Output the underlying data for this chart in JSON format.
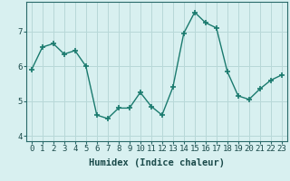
{
  "x": [
    0,
    1,
    2,
    3,
    4,
    5,
    6,
    7,
    8,
    9,
    10,
    11,
    12,
    13,
    14,
    15,
    16,
    17,
    18,
    19,
    20,
    21,
    22,
    23
  ],
  "y": [
    5.9,
    6.55,
    6.65,
    6.35,
    6.45,
    6.0,
    4.6,
    4.5,
    4.8,
    4.8,
    5.25,
    4.85,
    4.6,
    5.4,
    6.95,
    7.55,
    7.25,
    7.1,
    5.85,
    5.15,
    5.05,
    5.35,
    5.6,
    5.75
  ],
  "line_color": "#1a7a6e",
  "marker": "+",
  "background_color": "#d8f0f0",
  "grid_color": "#b8d8d8",
  "xlabel": "Humidex (Indice chaleur)",
  "ylim": [
    3.85,
    7.85
  ],
  "xlim": [
    -0.5,
    23.5
  ],
  "yticks": [
    4,
    5,
    6,
    7
  ],
  "xticks": [
    0,
    1,
    2,
    3,
    4,
    5,
    6,
    7,
    8,
    9,
    10,
    11,
    12,
    13,
    14,
    15,
    16,
    17,
    18,
    19,
    20,
    21,
    22,
    23
  ],
  "label_fontsize": 7.5,
  "tick_fontsize": 6.5,
  "linewidth": 1.0,
  "markersize": 4,
  "markeredgewidth": 1.2
}
